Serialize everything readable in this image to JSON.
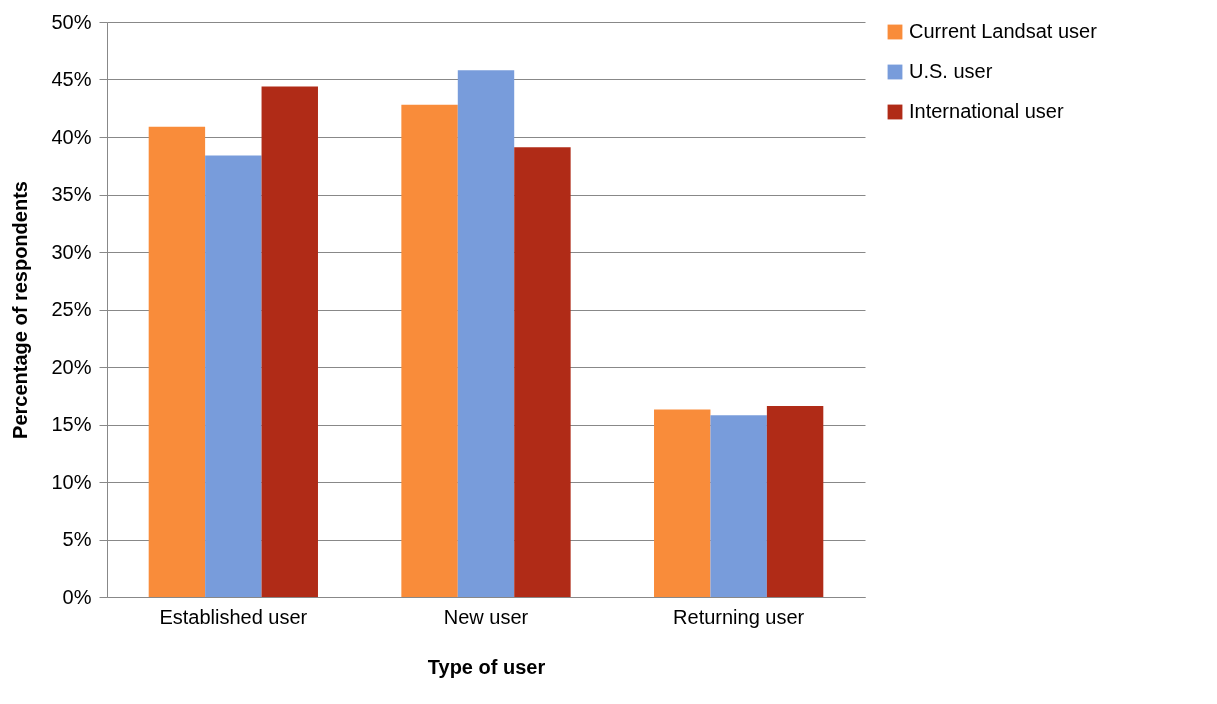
{
  "chart_data": {
    "type": "bar",
    "xlabel": "Type of user",
    "ylabel": "Percentage of respondents",
    "categories": [
      "Established user",
      "New user",
      "Returning user"
    ],
    "series": [
      {
        "name": "Current Landsat user",
        "color": "#f98c3a",
        "values": [
          40.9,
          42.8,
          16.3
        ]
      },
      {
        "name": "U.S. user",
        "color": "#789cdb",
        "values": [
          38.4,
          45.8,
          15.8
        ]
      },
      {
        "name": "International user",
        "color": "#b02b17",
        "values": [
          44.4,
          39.1,
          16.6
        ]
      }
    ],
    "ylim": [
      0,
      50
    ],
    "yticks": [
      {
        "value": 0,
        "label": "0%"
      },
      {
        "value": 5,
        "label": "5%"
      },
      {
        "value": 10,
        "label": "10%"
      },
      {
        "value": 15,
        "label": "15%"
      },
      {
        "value": 20,
        "label": "20%"
      },
      {
        "value": 25,
        "label": "25%"
      },
      {
        "value": 30,
        "label": "30%"
      },
      {
        "value": 35,
        "label": "35%"
      },
      {
        "value": 40,
        "label": "40%"
      },
      {
        "value": 45,
        "label": "45%"
      },
      {
        "value": 50,
        "label": "50%"
      }
    ],
    "grid": "y",
    "legend": "right"
  }
}
